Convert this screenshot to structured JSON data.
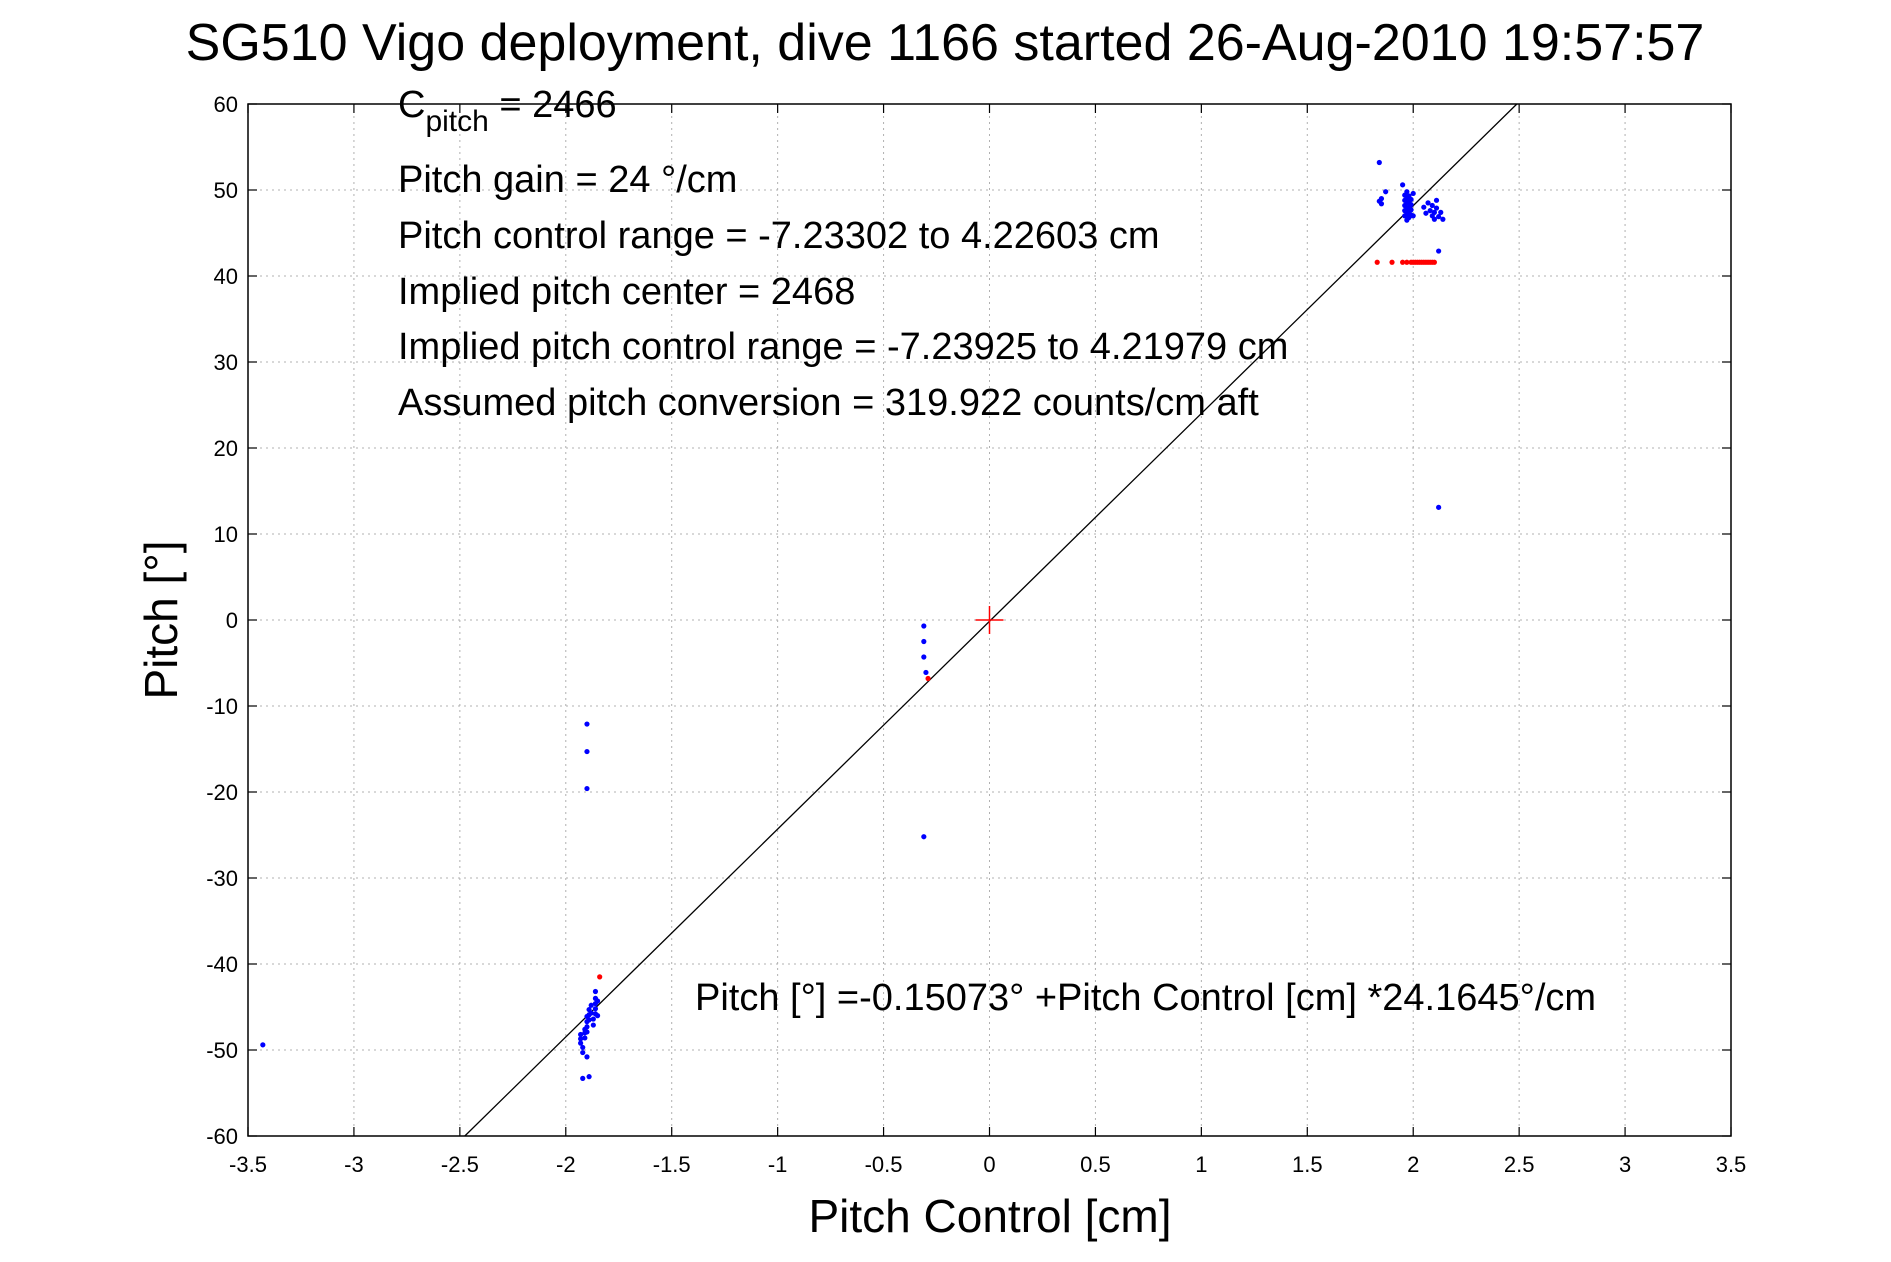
{
  "chart_data": {
    "type": "scatter",
    "title": "SG510 Vigo deployment, dive 1166 started 26-Aug-2010 19:57:57",
    "xlabel": "Pitch Control [cm]",
    "ylabel": "Pitch [°]",
    "xlim": [
      -3.5,
      3.5
    ],
    "ylim": [
      -60,
      60
    ],
    "xticks": [
      -3.5,
      -3,
      -2.5,
      -2,
      -1.5,
      -1,
      -0.5,
      0,
      0.5,
      1,
      1.5,
      2,
      2.5,
      3,
      3.5
    ],
    "xtick_labels": [
      "-3.5",
      "-3",
      "-2.5",
      "-2",
      "-1.5",
      "-1",
      "-0.5",
      "0",
      "0.5",
      "1",
      "1.5",
      "2",
      "2.5",
      "3",
      "3.5"
    ],
    "yticks": [
      -60,
      -50,
      -40,
      -30,
      -20,
      -10,
      0,
      10,
      20,
      30,
      40,
      50,
      60
    ],
    "ytick_labels": [
      "-60",
      "-50",
      "-40",
      "-30",
      "-20",
      "-10",
      "0",
      "10",
      "20",
      "30",
      "40",
      "50",
      "60"
    ],
    "grid": true,
    "annotations": {
      "cpitch_base": "C",
      "cpitch_sub": "pitch",
      "cpitch_value": " = 2466",
      "pitch_gain": "Pitch gain = 24 °/cm",
      "control_range": "Pitch control range = -7.23302 to 4.22603 cm",
      "implied_center": "Implied pitch center = 2468",
      "implied_range": "Implied pitch control range = -7.23925 to 4.21979 cm",
      "conversion": "Assumed pitch conversion = 319.922 counts/cm aft",
      "fit_equation": "Pitch [°] =-0.15073° +Pitch Control [cm] *24.1645°/cm"
    },
    "fit_line": {
      "intercept": -0.15073,
      "slope": 24.1645
    },
    "center_marker": {
      "x": 0,
      "y": 0
    },
    "colors": {
      "blue": "#0000ff",
      "red": "#ff0000",
      "line": "#000000"
    },
    "series": [
      {
        "color": "#0000ff",
        "points": [
          [
            -3.43,
            -49.4
          ],
          [
            -1.9,
            -12.1
          ],
          [
            -1.9,
            -15.3
          ],
          [
            -1.9,
            -19.6
          ],
          [
            -1.93,
            -48.2
          ],
          [
            -1.93,
            -48.7
          ],
          [
            -1.93,
            -49.2
          ],
          [
            -1.92,
            -49.7
          ],
          [
            -1.92,
            -50.3
          ],
          [
            -1.92,
            -53.3
          ],
          [
            -1.91,
            -47.6
          ],
          [
            -1.91,
            -48.0
          ],
          [
            -1.91,
            -48.6
          ],
          [
            -1.9,
            -46.1
          ],
          [
            -1.9,
            -46.7
          ],
          [
            -1.9,
            -47.3
          ],
          [
            -1.9,
            -47.9
          ],
          [
            -1.9,
            -50.8
          ],
          [
            -1.89,
            -45.3
          ],
          [
            -1.89,
            -45.9
          ],
          [
            -1.89,
            -46.5
          ],
          [
            -1.89,
            -53.1
          ],
          [
            -1.88,
            -44.8
          ],
          [
            -1.88,
            -45.7
          ],
          [
            -1.87,
            -46.4
          ],
          [
            -1.87,
            -47.1
          ],
          [
            -1.86,
            -43.2
          ],
          [
            -1.86,
            -44.0
          ],
          [
            -1.86,
            -44.6
          ],
          [
            -1.86,
            -45.2
          ],
          [
            -1.86,
            -45.8
          ],
          [
            -1.85,
            -44.3
          ],
          [
            -1.85,
            -46.0
          ],
          [
            -0.31,
            -0.7
          ],
          [
            -0.31,
            -2.5
          ],
          [
            -0.31,
            -4.3
          ],
          [
            -0.3,
            -6.1
          ],
          [
            -0.31,
            -25.2
          ],
          [
            1.84,
            53.2
          ],
          [
            1.84,
            48.7
          ],
          [
            1.85,
            49.0
          ],
          [
            1.85,
            48.4
          ],
          [
            1.87,
            49.8
          ],
          [
            1.95,
            50.6
          ],
          [
            1.96,
            47.0
          ],
          [
            1.96,
            47.6
          ],
          [
            1.96,
            48.2
          ],
          [
            1.96,
            48.8
          ],
          [
            1.96,
            49.4
          ],
          [
            1.97,
            46.5
          ],
          [
            1.97,
            47.2
          ],
          [
            1.97,
            47.8
          ],
          [
            1.97,
            48.5
          ],
          [
            1.97,
            49.1
          ],
          [
            1.97,
            49.8
          ],
          [
            1.98,
            46.8
          ],
          [
            1.98,
            47.4
          ],
          [
            1.98,
            48.0
          ],
          [
            1.98,
            48.6
          ],
          [
            1.98,
            49.3
          ],
          [
            1.99,
            47.1
          ],
          [
            1.99,
            47.7
          ],
          [
            1.99,
            48.3
          ],
          [
            1.99,
            48.9
          ],
          [
            2.0,
            47.0
          ],
          [
            2.0,
            49.6
          ],
          [
            2.05,
            48.0
          ],
          [
            2.06,
            47.3
          ],
          [
            2.07,
            48.5
          ],
          [
            2.08,
            47.6
          ],
          [
            2.09,
            47.0
          ],
          [
            2.09,
            48.2
          ],
          [
            2.1,
            46.6
          ],
          [
            2.1,
            47.4
          ],
          [
            2.11,
            48.8
          ],
          [
            2.11,
            47.9
          ],
          [
            2.12,
            46.9
          ],
          [
            2.12,
            42.9
          ],
          [
            2.13,
            47.4
          ],
          [
            2.14,
            46.6
          ],
          [
            2.12,
            13.1
          ]
        ]
      },
      {
        "color": "#ff0000",
        "points": [
          [
            -1.84,
            -41.5
          ],
          [
            -0.29,
            -6.8
          ],
          [
            1.83,
            41.6
          ],
          [
            1.9,
            41.6
          ],
          [
            1.95,
            41.6
          ],
          [
            1.97,
            41.6
          ],
          [
            1.99,
            41.6
          ],
          [
            2.0,
            41.6
          ],
          [
            2.01,
            41.6
          ],
          [
            2.02,
            41.6
          ],
          [
            2.03,
            41.6
          ],
          [
            2.04,
            41.6
          ],
          [
            2.05,
            41.6
          ],
          [
            2.06,
            41.6
          ],
          [
            2.07,
            41.6
          ],
          [
            2.08,
            41.6
          ],
          [
            2.09,
            41.6
          ],
          [
            2.1,
            41.6
          ]
        ]
      }
    ]
  }
}
